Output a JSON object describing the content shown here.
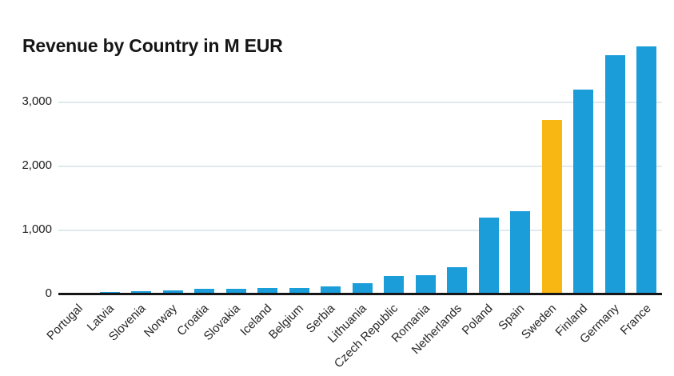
{
  "title": "Revenue by Country in M EUR",
  "colors": {
    "bar": "#1a9dd9",
    "highlight": "#f8b713",
    "axis_line": "#161616",
    "gridline": "#e0eaec",
    "title_text": "#161616",
    "tick_text": "#1c1c1c"
  },
  "y_axis": {
    "ticks": [
      {
        "label": "0",
        "value": 0
      },
      {
        "label": "1,000",
        "value": 1000
      },
      {
        "label": "2,000",
        "value": 2000
      },
      {
        "label": "3,000",
        "value": 3000
      }
    ]
  },
  "chart_data": {
    "type": "bar",
    "title": "Revenue by Country in M EUR",
    "categories": [
      "Portugal",
      "Latvia",
      "Slovenia",
      "Norway",
      "Croatia",
      "Slovakia",
      "Iceland",
      "Belgium",
      "Serbia",
      "Lithuania",
      "Czech Republic",
      "Romania",
      "Netherlands",
      "Poland",
      "Spain",
      "Sweden",
      "Finland",
      "Germany",
      "France"
    ],
    "values": [
      30,
      40,
      45,
      60,
      85,
      90,
      95,
      100,
      130,
      175,
      290,
      295,
      430,
      1200,
      1300,
      2725,
      3200,
      3740,
      3870
    ],
    "highlight_category": "Sweden",
    "xlabel": "",
    "ylabel": "",
    "ylim": [
      0,
      3900
    ],
    "gridlines": [
      1000,
      2000,
      3000
    ],
    "grid": "horizontal",
    "legend": "none"
  }
}
